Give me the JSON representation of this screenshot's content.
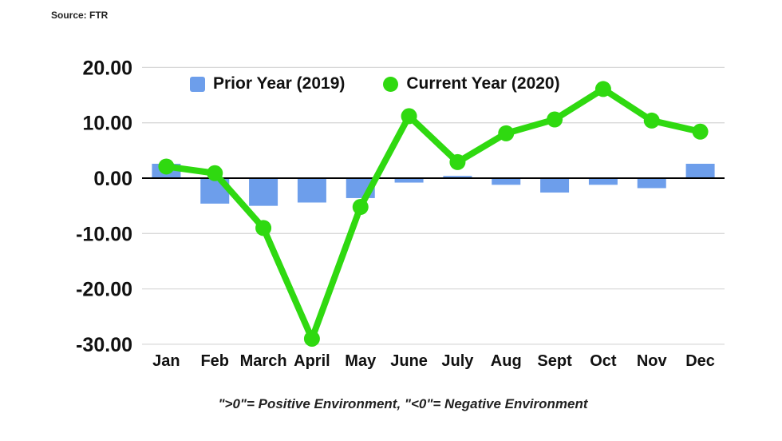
{
  "source_label": "Source: FTR",
  "footnote": "\">0\"= Positive Environment, \"<0\"= Negative Environment",
  "chart_data": {
    "type": "bar+line",
    "categories": [
      "Jan",
      "Feb",
      "March",
      "April",
      "May",
      "June",
      "July",
      "Aug",
      "Sept",
      "Oct",
      "Nov",
      "Dec"
    ],
    "series": [
      {
        "name": "Prior Year (2019)",
        "type": "bar",
        "color": "#6d9eeb",
        "values": [
          2.6,
          -4.6,
          -5.0,
          -4.4,
          -3.6,
          -0.8,
          0.4,
          -1.2,
          -2.6,
          -1.2,
          -1.8,
          2.6
        ]
      },
      {
        "name": "Current Year (2020)",
        "type": "line",
        "color": "#2fd910",
        "values": [
          2.1,
          0.9,
          -9.0,
          -29.0,
          -5.2,
          11.2,
          2.9,
          8.1,
          10.6,
          16.1,
          10.4,
          8.4
        ]
      }
    ],
    "ylim": [
      -30,
      20
    ],
    "ytick_step": 10,
    "ytick_labels": [
      "20.00",
      "10.00",
      "0.00",
      "-10.00",
      "-20.00",
      "-30.00"
    ],
    "grid": true,
    "legend_position": "top-inside",
    "gridline_color": "#d9d9d9",
    "zero_line_color": "#000000"
  }
}
